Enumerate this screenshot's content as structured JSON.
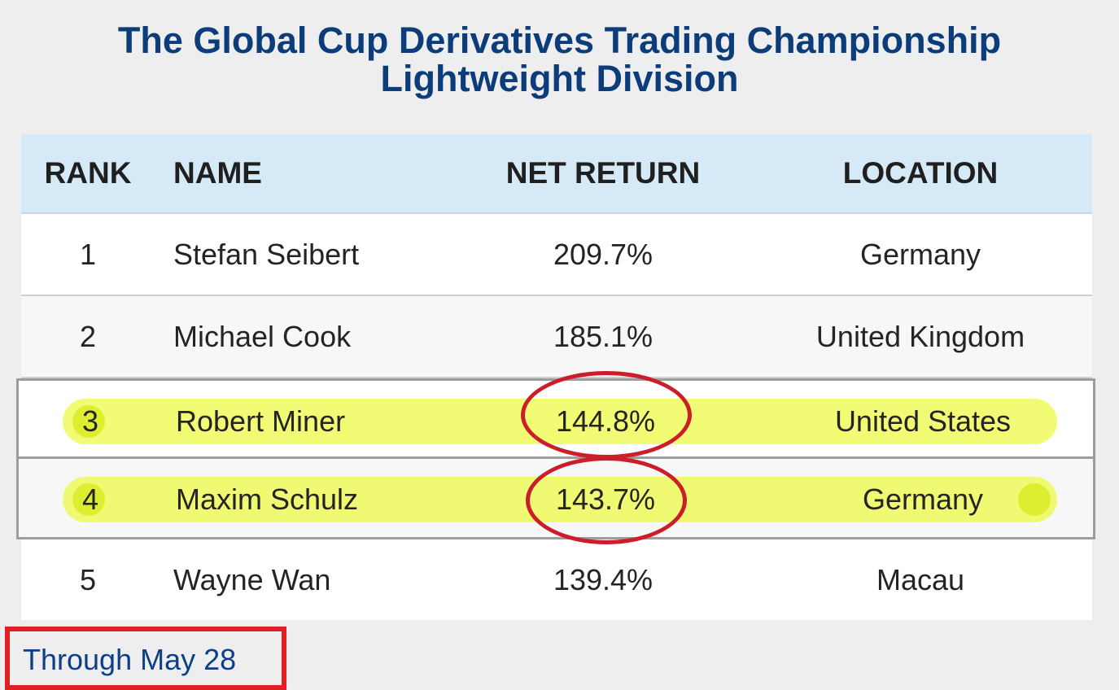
{
  "title": {
    "line1": "The Global Cup Derivatives Trading Championship",
    "line2": "Lightweight Division"
  },
  "table": {
    "headers": {
      "rank": "RANK",
      "name": "NAME",
      "net_return": "NET RETURN",
      "location": "LOCATION"
    },
    "rows": [
      {
        "rank": "1",
        "name": "Stefan Seibert",
        "net_return": "209.7%",
        "location": "Germany",
        "highlighted": false
      },
      {
        "rank": "2",
        "name": "Michael Cook",
        "net_return": "185.1%",
        "location": "United Kingdom",
        "highlighted": false
      },
      {
        "rank": "3",
        "name": "Robert Miner",
        "net_return": "144.8%",
        "location": "United States",
        "highlighted": true
      },
      {
        "rank": "4",
        "name": "Maxim Schulz",
        "net_return": "143.7%",
        "location": "Germany",
        "highlighted": true
      },
      {
        "rank": "5",
        "name": "Wayne Wan",
        "net_return": "139.4%",
        "location": "Macau",
        "highlighted": false
      }
    ]
  },
  "footer": {
    "link_text": "Through May 28"
  },
  "colors": {
    "title": "#0c3d7a",
    "header_bg": "#d6e9f6",
    "highlight": "#ecfa46",
    "annotation_red": "#cc1e2a",
    "link": "#0d3f86"
  }
}
